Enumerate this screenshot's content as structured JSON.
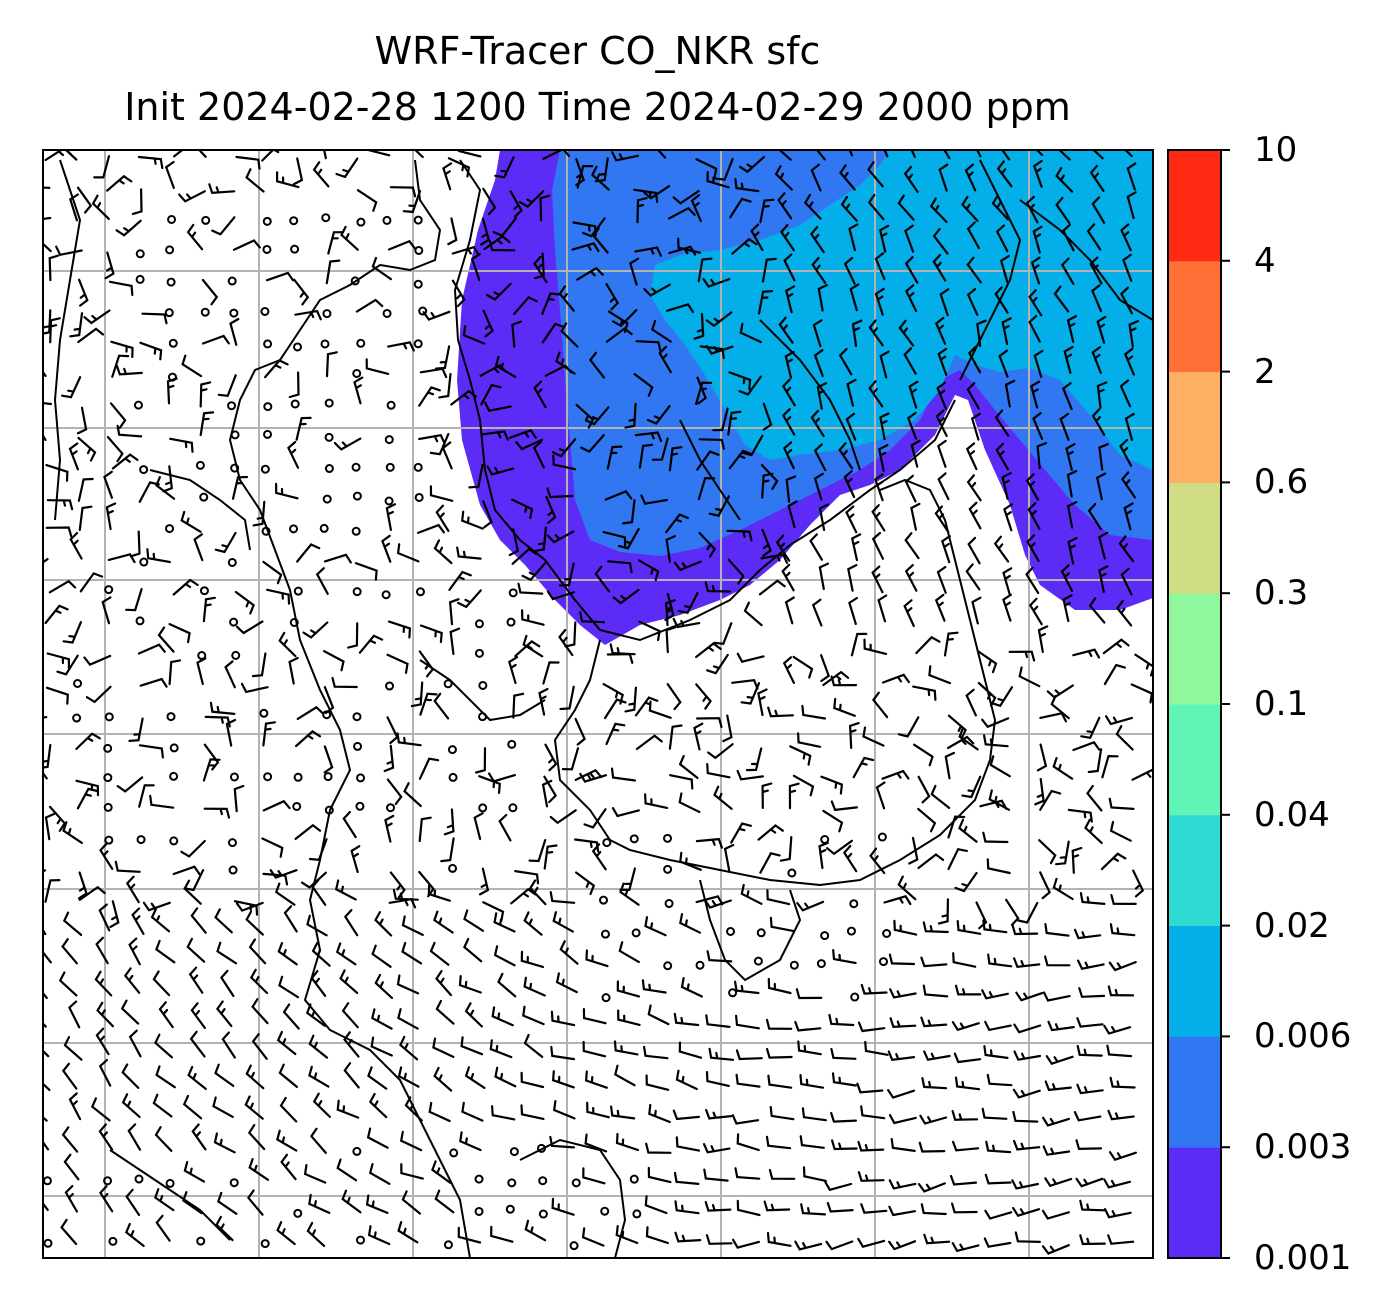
{
  "title": {
    "line1": "WRF-Tracer CO_NKR sfc",
    "line2": "Init 2024-02-28 1200 Time 2024-02-29 2000 ppm"
  },
  "colorbar": {
    "levels": [
      "0.001",
      "0.003",
      "0.006",
      "0.02",
      "0.04",
      "0.1",
      "0.3",
      "0.6",
      "2",
      "4",
      "10"
    ],
    "colors": [
      "#5c2cf6",
      "#3177f2",
      "#04aee9",
      "#2ddbd2",
      "#60f5b6",
      "#90f79c",
      "#d0dd85",
      "#fdb063",
      "#ff7036",
      "#ff2a14"
    ]
  },
  "map": {
    "plume_fill_colors": {
      "outer": "#5c2cf6",
      "middle": "#3177f2",
      "inner": "#04aee9"
    },
    "gridline_color": "#b3b3b3",
    "symbols": [
      "wind-barb",
      "calm-circle",
      "coastline"
    ]
  }
}
